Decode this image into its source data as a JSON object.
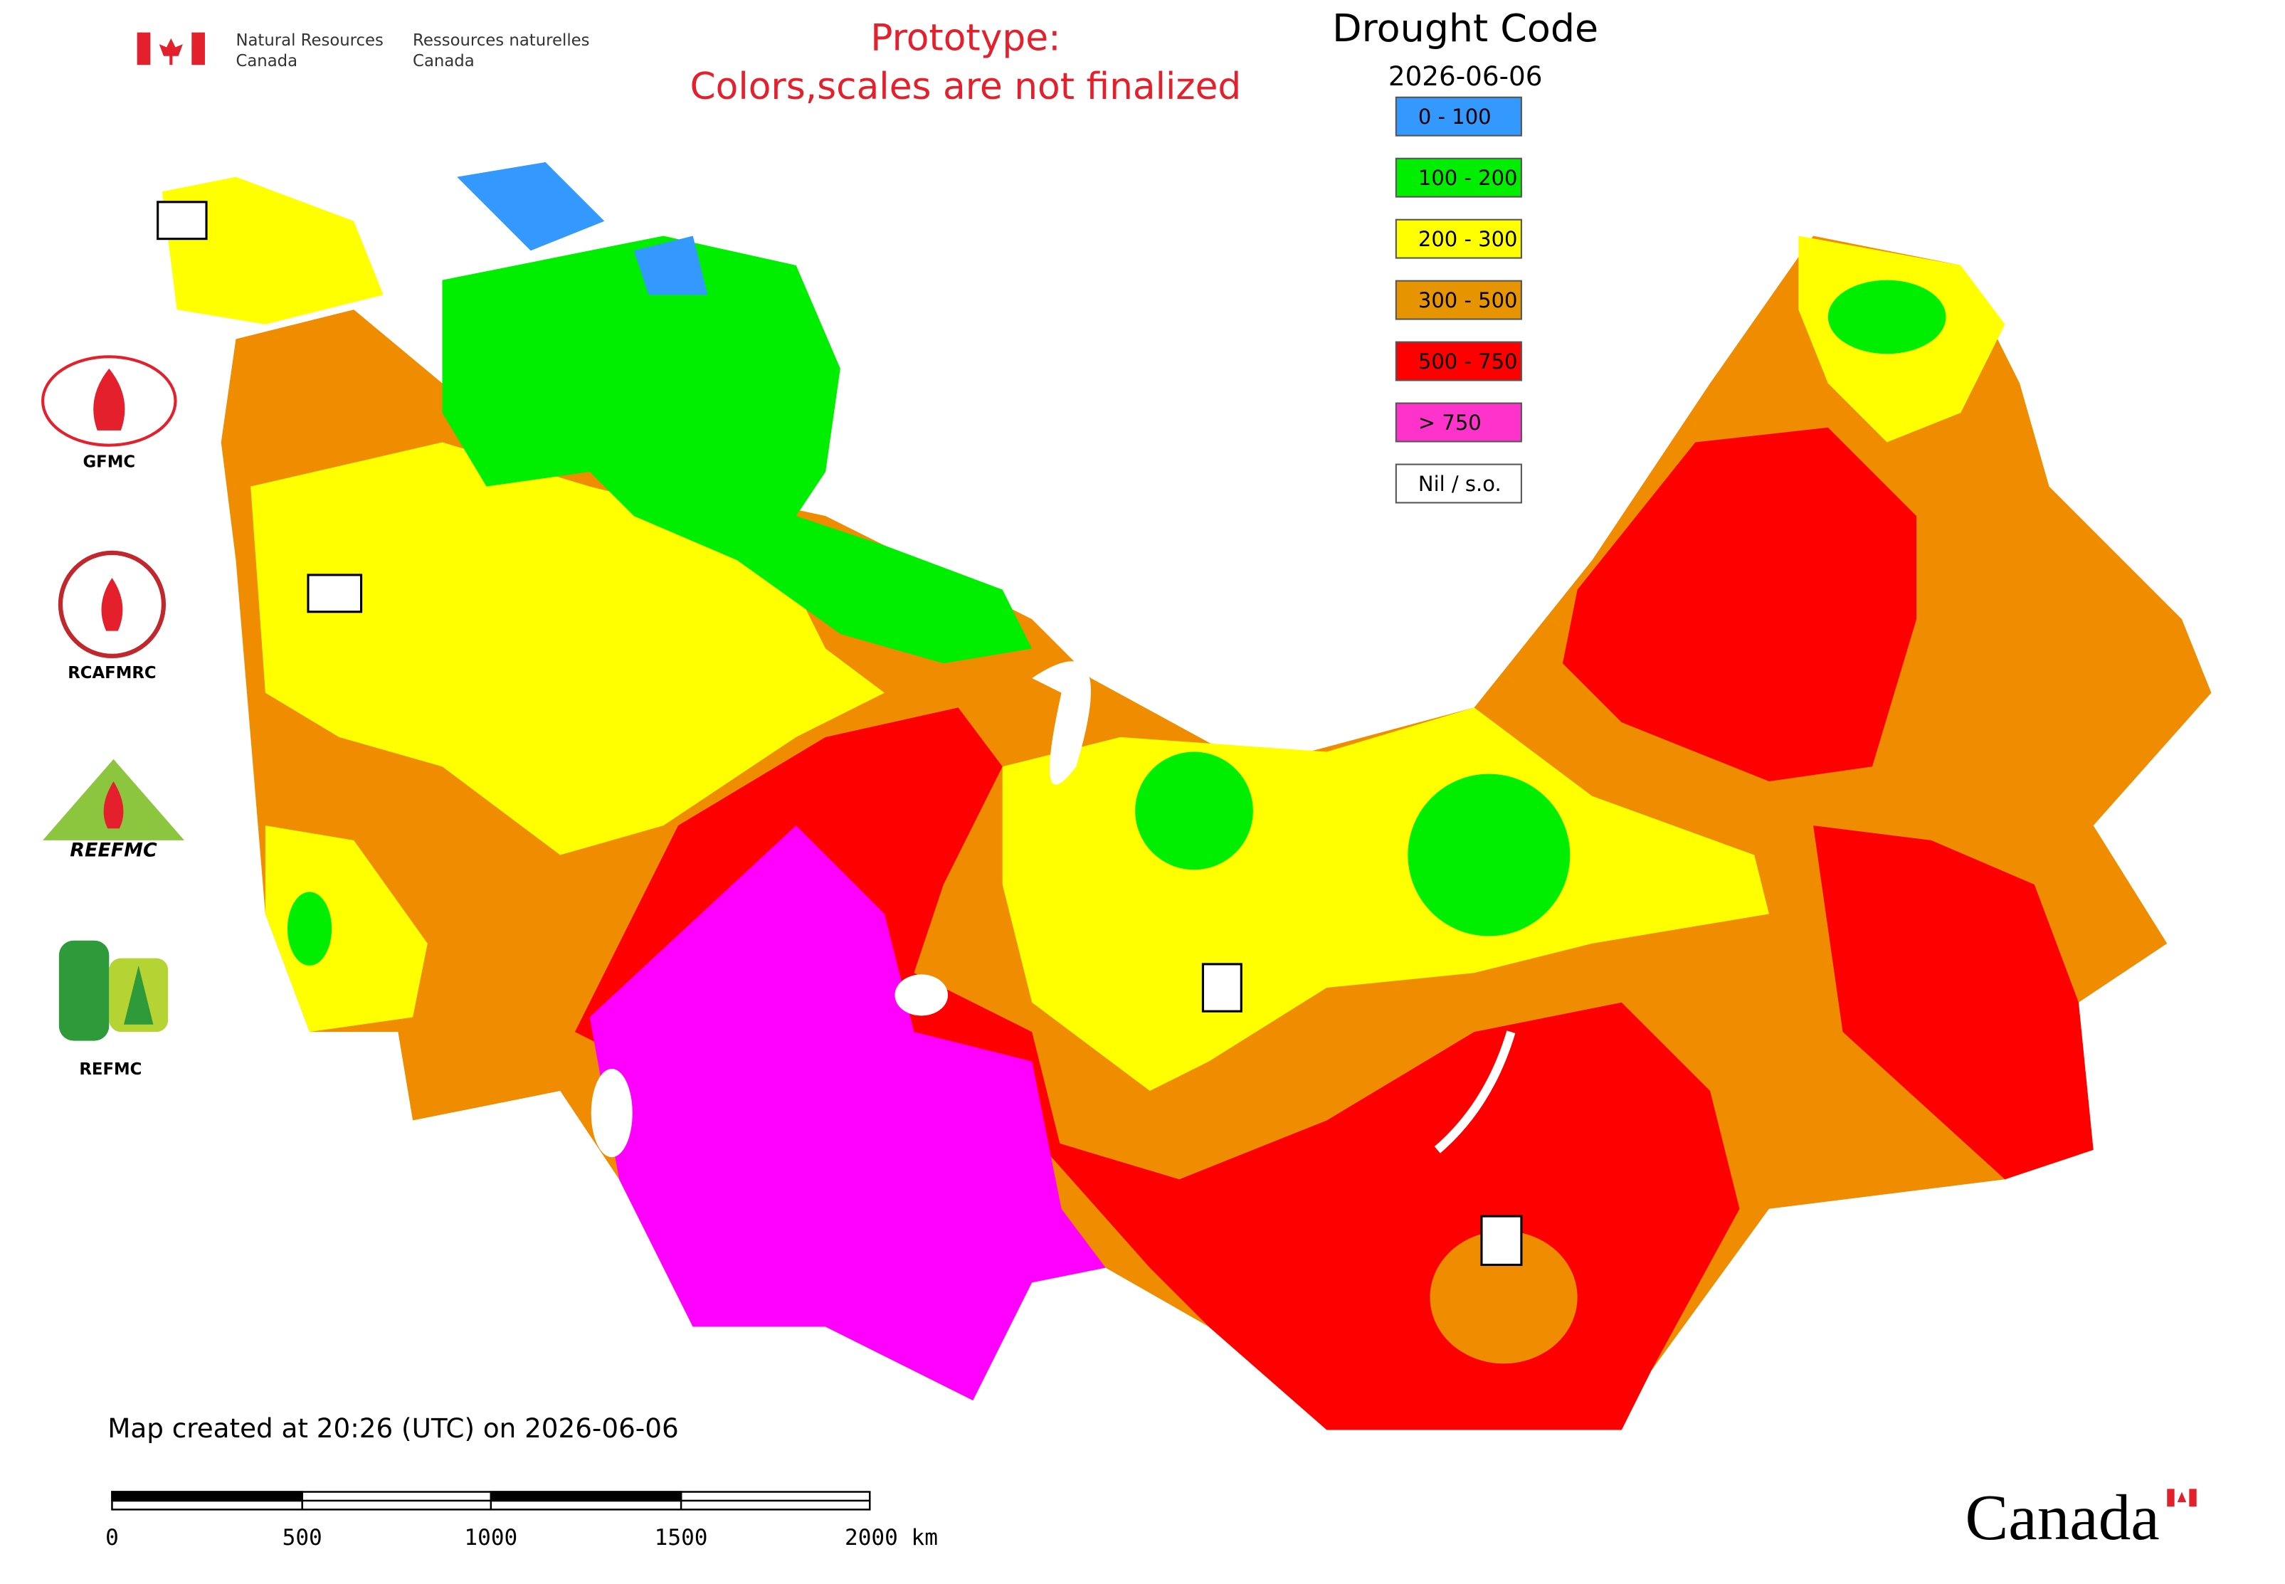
{
  "header": {
    "agency_en": [
      "Natural Resources",
      "Canada"
    ],
    "agency_fr": [
      "Ressources naturelles",
      "Canada"
    ]
  },
  "notice": [
    "Prototype:",
    "Colors,scales are not finalized"
  ],
  "legend": {
    "title": "Drought Code",
    "date": "2026-06-06",
    "items": [
      {
        "label": "0 - 100",
        "color": "#3399ff"
      },
      {
        "label": "100 - 200",
        "color": "#00ee00"
      },
      {
        "label": "200 - 300",
        "color": "#ffff00"
      },
      {
        "label": "300 - 500",
        "color": "#e69500"
      },
      {
        "label": "500 - 750",
        "color": "#ff0000"
      },
      {
        "label": "> 750",
        "color": "#ff33cc"
      },
      {
        "label": "Nil / s.o.",
        "color": "#ffffff"
      }
    ]
  },
  "logos": [
    "GFMC",
    "RCAFMRC",
    "REEFMC",
    "REFMC"
  ],
  "footer": {
    "created": "Map created at 20:26 (UTC) on 2026-06-06",
    "scale_labels": [
      "0",
      "500",
      "1000",
      "1500",
      "2000 km"
    ],
    "wordmark": "Canada"
  }
}
